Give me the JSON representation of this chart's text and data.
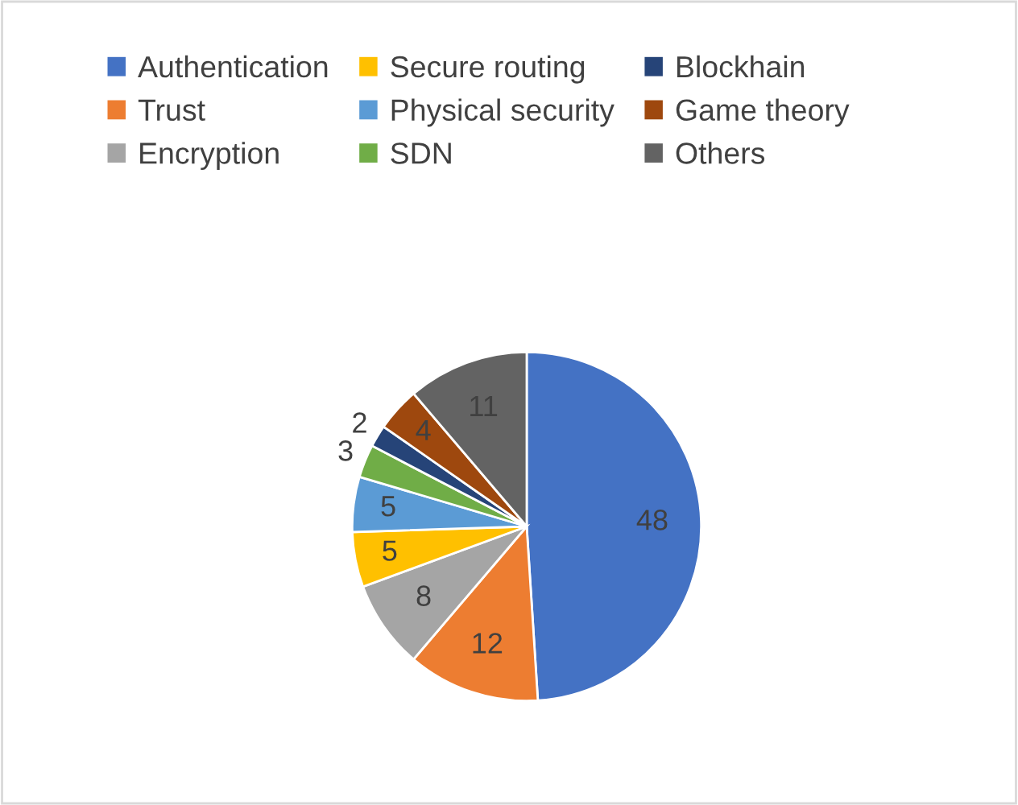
{
  "chart_data": {
    "type": "pie",
    "categories": [
      "Authentication",
      "Trust",
      "Encryption",
      "Secure routing",
      "Physical security",
      "SDN",
      "Blockhain",
      "Game theory",
      "Others"
    ],
    "values": [
      48,
      12,
      8,
      5,
      5,
      3,
      2,
      4,
      11
    ],
    "colors": [
      "#4472c4",
      "#ed7d31",
      "#a5a5a5",
      "#ffc000",
      "#5b9bd5",
      "#70ad47",
      "#264478",
      "#9e480e",
      "#636363"
    ],
    "data_labels": true,
    "legend": "top"
  }
}
